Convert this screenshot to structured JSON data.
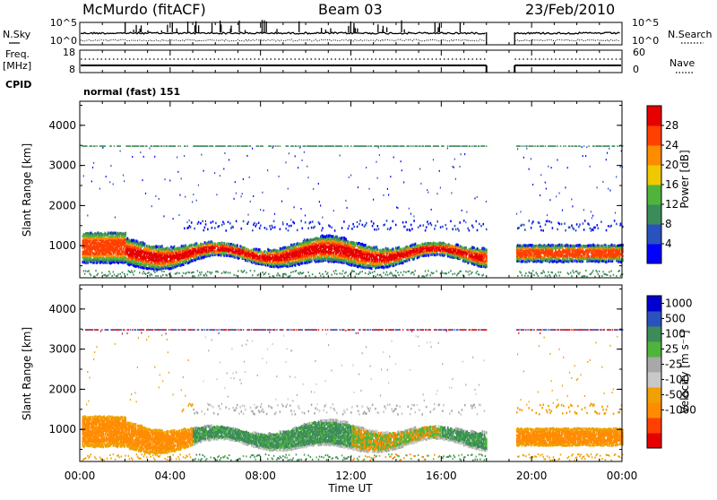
{
  "header": {
    "station": "McMurdo (fitACF)",
    "beam": "Beam 03",
    "date": "23/Feb/2010"
  },
  "side_labels": {
    "nsky": "N.Sky",
    "nsearch": "N.Search",
    "freq_top": "Freq.",
    "freq_unit": "[MHz]",
    "nave": "Nave",
    "cpid": "CPID",
    "mode": "normal (fast) 151"
  },
  "icons": {
    "nsky": "solid-line-icon",
    "nsearch": "dotted-line-icon",
    "freq": "solid-line-icon",
    "nave": "dotted-line-icon"
  },
  "colors": {
    "frame": "#000000",
    "power_scale": [
      "#0000ff",
      "#2a52be",
      "#3c8c5a",
      "#50b43c",
      "#f0c800",
      "#ff8c00",
      "#ff4000",
      "#e60000"
    ],
    "velocity_scale": [
      "#e60000",
      "#ff4000",
      "#ff8c00",
      "#f0a000",
      "#c8c8c8",
      "#a8a8a8",
      "#50b43c",
      "#3c8c5a",
      "#2a52be",
      "#0000d0"
    ]
  },
  "chart_data": [
    {
      "type": "line",
      "name": "noise-panel",
      "series": [
        {
          "name": "N.Sky"
        },
        {
          "name": "N.Search"
        }
      ],
      "left_ticks": [
        "10^5",
        "10^0"
      ],
      "right_ticks": [
        "10^5",
        "10^0"
      ],
      "gap": [
        "18:00",
        "19:15"
      ]
    },
    {
      "type": "line",
      "name": "freq-nave-panel",
      "left_ticks": [
        "18",
        "8"
      ],
      "right_ticks": [
        "60",
        "0"
      ],
      "gap": [
        "18:00",
        "19:15"
      ]
    },
    {
      "type": "heatmap",
      "name": "power",
      "ylabel": "Slant Range [km]",
      "yticks": [
        "1000",
        "2000",
        "3000",
        "4000"
      ],
      "ylim": [
        200,
        4600
      ],
      "xlim": [
        "00:00",
        "24:00"
      ],
      "colorbar_label": "Power [dB]",
      "colorbar_ticks": [
        "4",
        "8",
        "12",
        "16",
        "20",
        "24",
        "28"
      ],
      "gap": [
        "18:00",
        "19:15"
      ]
    },
    {
      "type": "heatmap",
      "name": "velocity",
      "ylabel": "Slant Range [km]",
      "yticks": [
        "1000",
        "2000",
        "3000",
        "4000"
      ],
      "ylim": [
        200,
        4600
      ],
      "xlim": [
        "00:00",
        "24:00"
      ],
      "colorbar_label": "Velocity [m s⁻¹]",
      "colorbar_ticks": [
        "1000",
        "500",
        "100",
        "25",
        "-25",
        "-100",
        "-500",
        "-1000"
      ],
      "gap": [
        "18:00",
        "19:15"
      ]
    },
    {
      "type": "axis",
      "name": "time-axis",
      "xlabel": "Time UT",
      "xticks": [
        "00:00",
        "04:00",
        "08:00",
        "12:00",
        "16:00",
        "20:00",
        "00:00"
      ]
    }
  ]
}
